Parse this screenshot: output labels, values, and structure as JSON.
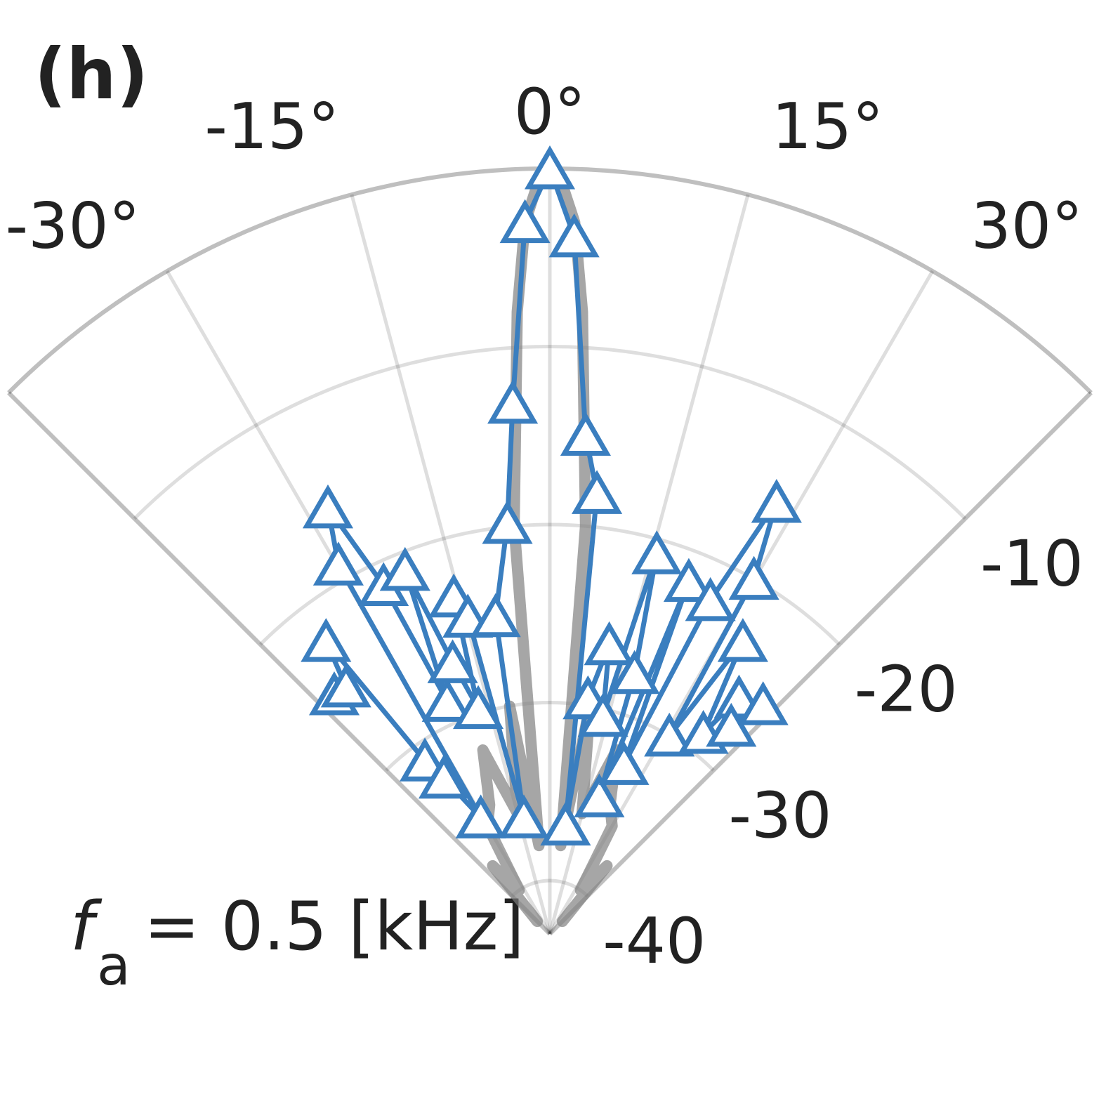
{
  "chart_data": {
    "type": "polar",
    "title": "(h)",
    "annotation": {
      "symbol": "f",
      "subscript": "a",
      "text": "= 0.5 [kHz]"
    },
    "thetalim": [
      -45,
      45
    ],
    "thetaticks": [
      {
        "value": -30,
        "label": "-30°"
      },
      {
        "value": -15,
        "label": "-15°"
      },
      {
        "value": 0,
        "label": "0°"
      },
      {
        "value": 15,
        "label": "15°"
      },
      {
        "value": 30,
        "label": "30°"
      }
    ],
    "rlim": [
      -43,
      0
    ],
    "rticks": [
      -10,
      -20,
      -30,
      -40
    ],
    "grid": true,
    "series": [
      {
        "color": "#808080",
        "marker": "none",
        "theta": [
          -45,
          -40,
          -35,
          -30,
          -25,
          -20,
          -15,
          -10,
          -7,
          -5,
          -3,
          -2,
          -1,
          0,
          1,
          2,
          3,
          5,
          7,
          10,
          15,
          20,
          25,
          30,
          35,
          40,
          45
        ],
        "r": [
          -42,
          -38,
          -40,
          -36,
          -35,
          -32,
          -36,
          -30,
          -38,
          -20,
          -8,
          -3,
          -1,
          0,
          -1,
          -3,
          -8,
          -20,
          -38,
          -30,
          -36,
          -32,
          -35,
          -36,
          -40,
          -38,
          -42
        ]
      },
      {
        "color": "#3a7ebf",
        "marker": "triangle",
        "theta": [
          -42.0,
          -39.5,
          -37.4,
          -35.8,
          -34.2,
          -30.7,
          -29.8,
          -27.5,
          -25.5,
          -23.8,
          -21.7,
          -19.7,
          -17.6,
          -15.9,
          -14.5,
          -12.6,
          -9.7,
          -5.9,
          -4.0,
          -2.0,
          0,
          2.0,
          4.1,
          6.1,
          8.2,
          9.2,
          11.6,
          13.7,
          15.7,
          18.0,
          19.8,
          21.5,
          23.6,
          25.7,
          27.7,
          29.9,
          31.1,
          33.4,
          37.4,
          38.7,
          41.1,
          42.9
        ],
        "r": [
          -24.9,
          -25.0,
          -22.3,
          -31.0,
          -32.4,
          -35.4,
          -19.1,
          -16.0,
          -21.3,
          -28.7,
          -21.0,
          -26.8,
          -29.7,
          -23.3,
          -24.6,
          -36.3,
          -24.9,
          -19.8,
          -13.1,
          -3.0,
          0,
          -3.8,
          -14.9,
          -18.1,
          -36.8,
          -29.6,
          -26.4,
          -30.4,
          -20.8,
          -27.6,
          -34.8,
          -21.7,
          -32.6,
          -22.2,
          -15.6,
          -20.0,
          -30.0,
          -23.3,
          -28.8,
          -26.0,
          -27.5,
          -25.4
        ]
      }
    ]
  }
}
